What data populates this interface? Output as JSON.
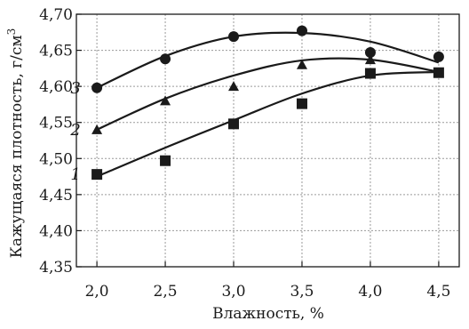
{
  "chart_data": {
    "type": "scatter",
    "xlabel": "Влажность, %",
    "ylabel": "Кажущаяся плотность, г/см",
    "ylabel_sup": "3",
    "xlim": [
      1.85,
      4.65
    ],
    "ylim": [
      4.35,
      4.7
    ],
    "xticks": [
      2.0,
      2.5,
      3.0,
      3.5,
      4.0,
      4.5
    ],
    "xtick_labels": [
      "2,0",
      "2,5",
      "3,0",
      "3,5",
      "4,0",
      "4,5"
    ],
    "yticks": [
      4.35,
      4.4,
      4.45,
      4.5,
      4.55,
      4.6,
      4.65,
      4.7
    ],
    "ytick_labels": [
      "4,35",
      "4,40",
      "4,45",
      "4,50",
      "4,55",
      "4,60",
      "4,65",
      "4,70"
    ],
    "grid": true,
    "series": [
      {
        "label": "1",
        "marker": "square",
        "points": [
          [
            2.0,
            4.478
          ],
          [
            2.5,
            4.497
          ],
          [
            3.0,
            4.548
          ],
          [
            3.5,
            4.576
          ],
          [
            4.0,
            4.618
          ],
          [
            4.5,
            4.619
          ]
        ],
        "curve": [
          [
            2.0,
            4.475
          ],
          [
            2.5,
            4.515
          ],
          [
            3.0,
            4.553
          ],
          [
            3.5,
            4.59
          ],
          [
            4.0,
            4.615
          ],
          [
            4.5,
            4.62
          ]
        ]
      },
      {
        "label": "2",
        "marker": "triangle",
        "points": [
          [
            2.0,
            4.54
          ],
          [
            2.5,
            4.58
          ],
          [
            3.0,
            4.6
          ],
          [
            3.5,
            4.63
          ],
          [
            4.0,
            4.637
          ],
          [
            4.5,
            4.619
          ]
        ],
        "curve": [
          [
            2.0,
            4.54
          ],
          [
            2.5,
            4.583
          ],
          [
            3.0,
            4.615
          ],
          [
            3.5,
            4.636
          ],
          [
            4.0,
            4.637
          ],
          [
            4.5,
            4.62
          ]
        ]
      },
      {
        "label": "3",
        "marker": "circle",
        "points": [
          [
            2.0,
            4.598
          ],
          [
            2.5,
            4.638
          ],
          [
            3.0,
            4.669
          ],
          [
            3.5,
            4.677
          ],
          [
            4.0,
            4.647
          ],
          [
            4.5,
            4.641
          ]
        ],
        "curve": [
          [
            2.0,
            4.598
          ],
          [
            2.5,
            4.642
          ],
          [
            3.0,
            4.669
          ],
          [
            3.5,
            4.674
          ],
          [
            4.0,
            4.662
          ],
          [
            4.5,
            4.633
          ]
        ]
      }
    ]
  }
}
